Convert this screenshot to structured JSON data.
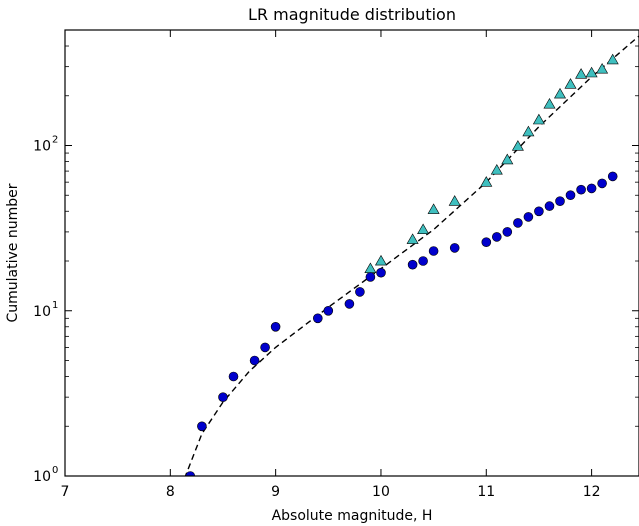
{
  "chart_data": {
    "type": "scatter",
    "title": "LR magnitude distribution",
    "xlabel": "Absolute magnitude, H",
    "ylabel": "Cumulative number",
    "xlim": [
      7,
      12.45
    ],
    "ylim": [
      1,
      500
    ],
    "y_scale": "log",
    "grid": false,
    "legend": "none",
    "x_ticks": [
      7,
      8,
      9,
      10,
      11,
      12
    ],
    "x_tick_labels": [
      "7",
      "8",
      "9",
      "10",
      "11",
      "12"
    ],
    "y_ticks": [
      1,
      10,
      100
    ],
    "y_tick_labels": [
      "10",
      "10",
      "10"
    ],
    "y_tick_exponents": [
      "0",
      "1",
      "2"
    ],
    "colors": {
      "circles": "#0000cc",
      "triangles": "#3fbfbf",
      "fit_line": "#000000",
      "frame": "#000000"
    },
    "series": [
      {
        "marker": "circle",
        "points": [
          [
            8.19,
            1
          ],
          [
            8.3,
            2
          ],
          [
            8.5,
            3
          ],
          [
            8.6,
            4
          ],
          [
            8.8,
            5
          ],
          [
            8.9,
            6
          ],
          [
            9.0,
            8
          ],
          [
            9.4,
            9
          ],
          [
            9.5,
            10
          ],
          [
            9.7,
            11
          ],
          [
            9.8,
            13
          ],
          [
            9.9,
            16
          ],
          [
            10.0,
            17
          ],
          [
            10.3,
            19
          ],
          [
            10.4,
            20
          ],
          [
            10.5,
            23
          ],
          [
            10.7,
            24
          ],
          [
            11.0,
            26
          ],
          [
            11.1,
            28
          ],
          [
            11.2,
            30
          ],
          [
            11.3,
            34
          ],
          [
            11.4,
            37
          ],
          [
            11.5,
            40
          ],
          [
            11.6,
            43
          ],
          [
            11.7,
            46
          ],
          [
            11.8,
            50
          ],
          [
            11.9,
            54
          ],
          [
            12.0,
            55
          ],
          [
            12.1,
            59
          ],
          [
            12.2,
            65
          ]
        ]
      },
      {
        "marker": "triangle",
        "points": [
          [
            9.9,
            18
          ],
          [
            10.0,
            20
          ],
          [
            10.3,
            27
          ],
          [
            10.4,
            31
          ],
          [
            10.5,
            41
          ],
          [
            10.7,
            46
          ],
          [
            11.0,
            60
          ],
          [
            11.1,
            71
          ],
          [
            11.2,
            82
          ],
          [
            11.3,
            99
          ],
          [
            11.4,
            121
          ],
          [
            11.5,
            143
          ],
          [
            11.6,
            178
          ],
          [
            11.7,
            205
          ],
          [
            11.8,
            235
          ],
          [
            11.9,
            270
          ],
          [
            12.0,
            275
          ],
          [
            12.1,
            290
          ],
          [
            12.2,
            330
          ]
        ]
      },
      {
        "marker": "dashed-line",
        "points": [
          [
            8.1,
            0.85
          ],
          [
            8.3,
            1.8
          ],
          [
            8.5,
            2.8
          ],
          [
            8.75,
            4.3
          ],
          [
            9.0,
            6.0
          ],
          [
            9.5,
            10.5
          ],
          [
            10.0,
            18.0
          ],
          [
            10.5,
            31.0
          ],
          [
            11.0,
            60.0
          ],
          [
            11.5,
            130.0
          ],
          [
            12.0,
            260.0
          ],
          [
            12.45,
            460.0
          ]
        ]
      }
    ]
  }
}
